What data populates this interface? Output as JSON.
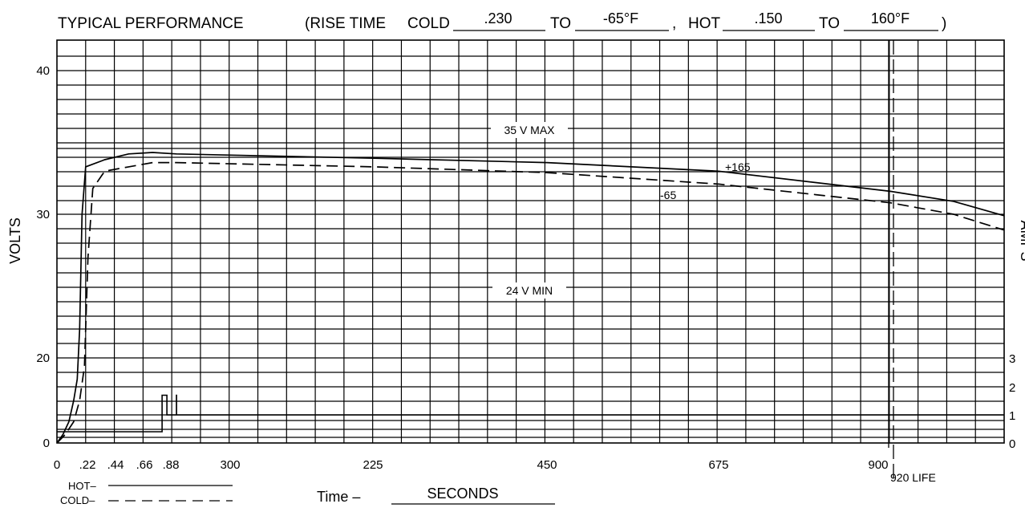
{
  "header": {
    "title": "TYPICAL PERFORMANCE",
    "rise_prefix": "(RISE TIME",
    "cold_label": "COLD",
    "cold_value": ".230",
    "to_label_1": "TO",
    "cold_temp": "-65°F",
    "comma": ",",
    "hot_label": "HOT",
    "hot_value": ".150",
    "to_label_2": "TO",
    "hot_temp": "160°F",
    "close_paren": ")"
  },
  "chart_data": {
    "type": "line",
    "title": "TYPICAL PERFORMANCE",
    "xlabel_prefix": "Time –",
    "xlabel": "SECONDS",
    "ylabel": "VOLTS",
    "y2label": "AMPS",
    "ylim": [
      0,
      42
    ],
    "y_ticks": [
      "0",
      "20",
      "30",
      "40"
    ],
    "y2_ticks": [
      "0",
      "1",
      "2",
      "3"
    ],
    "x_ticks": [
      "0",
      ".22",
      ".44",
      ".66",
      ".88",
      "300",
      "225",
      "450",
      "675",
      "900"
    ],
    "grid": true,
    "annotations": {
      "max_line": "35 V MAX",
      "min_line": "24 V MIN",
      "hot_curve_label": "+165",
      "cold_curve_label": "-65",
      "life_label": "920 LIFE"
    },
    "legend": {
      "placement": "bottom-left",
      "hot": "HOT–",
      "cold": "COLD–"
    },
    "series": [
      {
        "name": "+165",
        "style": "solid",
        "x": [
          0,
          0.05,
          0.1,
          0.14,
          0.17,
          0.19,
          0.21,
          0.24,
          0.4,
          0.6,
          0.8,
          1.0,
          225,
          450,
          675,
          900,
          1000,
          1080
        ],
        "y": [
          0,
          2,
          5,
          10,
          15,
          22,
          30,
          33.3,
          33.8,
          34.2,
          34.3,
          34.2,
          33.9,
          33.6,
          33.0,
          31.6,
          30.9,
          29.9
        ]
      },
      {
        "name": "-65",
        "style": "dashed",
        "x": [
          0,
          0.07,
          0.14,
          0.19,
          0.23,
          0.26,
          0.3,
          0.4,
          0.6,
          0.8,
          1.0,
          225,
          450,
          675,
          900,
          1000,
          1080
        ],
        "y": [
          0,
          2,
          5,
          10,
          18,
          27,
          31.8,
          33.0,
          33.3,
          33.6,
          33.6,
          33.3,
          32.9,
          32.1,
          30.8,
          30.0,
          28.9
        ]
      }
    ],
    "current_trace": {
      "name": "amps",
      "points": [
        [
          0,
          0.4
        ],
        [
          0.88,
          0.4
        ],
        [
          0.88,
          1.7
        ],
        [
          0.92,
          1.7
        ],
        [
          0.92,
          1.0
        ],
        [
          1.0,
          1.0
        ],
        [
          1.0,
          1.7
        ],
        [
          1.06,
          1.7
        ],
        [
          1.06,
          1.0
        ],
        [
          1080,
          1.0
        ]
      ]
    }
  }
}
